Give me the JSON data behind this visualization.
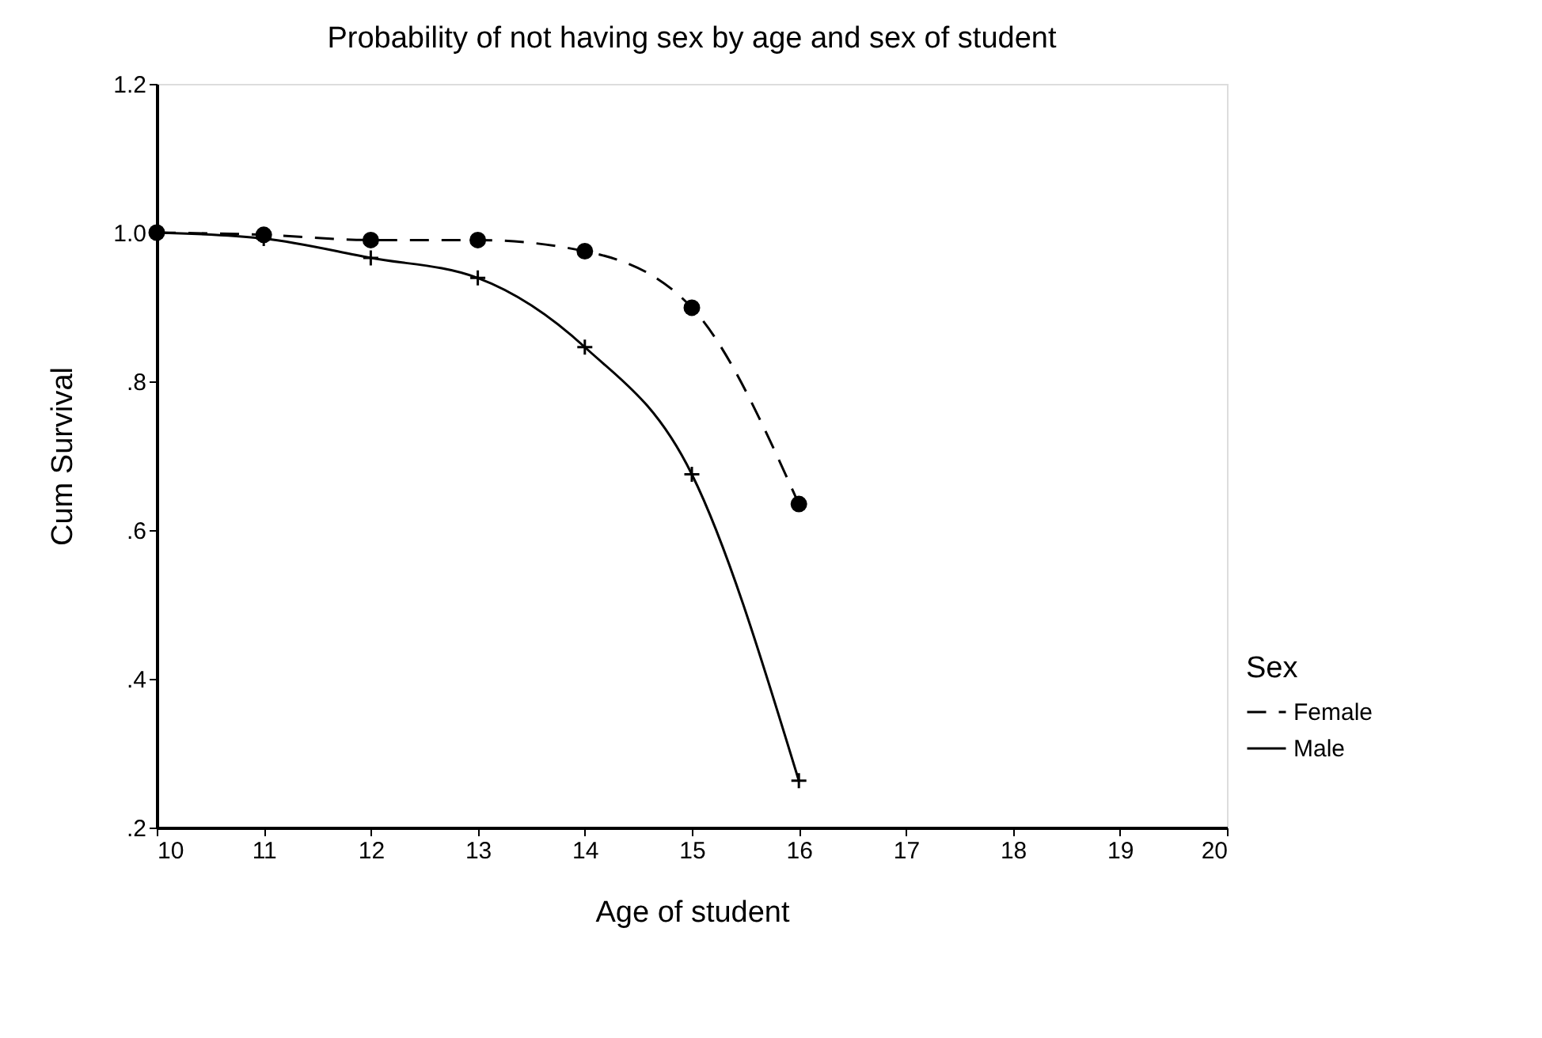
{
  "chart_data": {
    "type": "line",
    "title": "Probability of not having sex by age and sex of student",
    "xlabel": "Age of student",
    "ylabel": "Cum Survival",
    "legend_title": "Sex",
    "x": [
      10,
      11,
      12,
      13,
      14,
      15,
      16
    ],
    "series": [
      {
        "name": "Female",
        "color": "#000000",
        "line_style": "dashed",
        "marker": "circle",
        "values": [
          1.0,
          0.997,
          0.99,
          0.99,
          0.975,
          0.899,
          0.635
        ]
      },
      {
        "name": "Male",
        "color": "#000000",
        "line_style": "solid",
        "marker": "cross",
        "values": [
          1.0,
          0.992,
          0.966,
          0.939,
          0.846,
          0.675,
          0.263
        ]
      }
    ],
    "xlim": [
      10,
      20
    ],
    "xticks": [
      10,
      11,
      12,
      13,
      14,
      15,
      16,
      17,
      18,
      19,
      20
    ],
    "ylim": [
      0.2,
      1.2
    ],
    "yticks": [
      {
        "value": 0.2,
        "label": ".2"
      },
      {
        "value": 0.4,
        "label": ".4"
      },
      {
        "value": 0.6,
        "label": ".6"
      },
      {
        "value": 0.8,
        "label": ".8"
      },
      {
        "value": 1.0,
        "label": "1.0"
      },
      {
        "value": 1.2,
        "label": "1.2"
      }
    ],
    "grid": false,
    "legend": "bottom right"
  }
}
